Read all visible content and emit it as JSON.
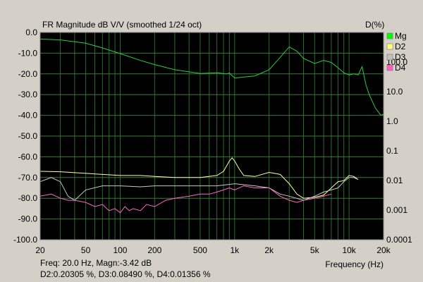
{
  "chart_data": {
    "type": "line",
    "title": "FR Magnitude dB V/V (smoothed 1/24 oct)",
    "right_axis_title": "D(%)",
    "xlabel": "Frequency (Hz)",
    "x_scale": "log",
    "xlim": [
      20,
      20000
    ],
    "x_ticks": [
      {
        "v": 20,
        "label": "20"
      },
      {
        "v": 50,
        "label": "50"
      },
      {
        "v": 100,
        "label": "100"
      },
      {
        "v": 200,
        "label": "200"
      },
      {
        "v": 500,
        "label": "500"
      },
      {
        "v": 1000,
        "label": "1k"
      },
      {
        "v": 2000,
        "label": "2k"
      },
      {
        "v": 5000,
        "label": "5k"
      },
      {
        "v": 10000,
        "label": "10k"
      },
      {
        "v": 20000,
        "label": "20k"
      }
    ],
    "ylim": [
      -100,
      0
    ],
    "y_ticks": [
      "0.0",
      "-10.0",
      "-20.0",
      "-30.0",
      "-40.0",
      "-50.0",
      "-60.0",
      "-70.0",
      "-80.0",
      "-90.0",
      "-100.0"
    ],
    "y2_scale": "log",
    "y2lim": [
      0.0001,
      1000
    ],
    "y2_ticks": [
      {
        "v": 100,
        "label": "100.0"
      },
      {
        "v": 10,
        "label": "10.0"
      },
      {
        "v": 1,
        "label": "1.0"
      },
      {
        "v": 0.1,
        "label": "0.1"
      },
      {
        "v": 0.01,
        "label": "0.01"
      },
      {
        "v": 0.001,
        "label": "0.001"
      },
      {
        "v": 0.0001,
        "label": "0.0001"
      }
    ],
    "grid": true,
    "legend_position": "right",
    "legend": [
      {
        "name": "Mg",
        "color": "#00ff00"
      },
      {
        "name": "D2",
        "color": "#ffff80"
      },
      {
        "name": "D3",
        "color": "#c0c0c0"
      },
      {
        "name": "D4",
        "color": "#ff60c0"
      }
    ],
    "series": [
      {
        "name": "Mg",
        "axis": "left",
        "color": "#2ecc40",
        "x": [
          20,
          30,
          50,
          70,
          100,
          150,
          200,
          300,
          500,
          700,
          850,
          900,
          1000,
          1200,
          1500,
          2000,
          2500,
          3000,
          3500,
          4000,
          5000,
          6000,
          7000,
          8000,
          9000,
          10000,
          11000,
          12000,
          13000,
          14000,
          15000,
          17000,
          19000,
          20000
        ],
        "y": [
          -3.2,
          -3.6,
          -5.2,
          -7.5,
          -10.2,
          -13.5,
          -15.5,
          -18.0,
          -19.8,
          -19.5,
          -20.0,
          -19.6,
          -22.0,
          -21.5,
          -21.0,
          -18.0,
          -12.0,
          -7.0,
          -9.0,
          -12.5,
          -15.0,
          -13.5,
          -14.5,
          -17.0,
          -19.5,
          -20.5,
          -20.0,
          -20.5,
          -16.5,
          -25.0,
          -30.0,
          -36.5,
          -40.0,
          -39.5
        ]
      },
      {
        "name": "D2",
        "axis": "right",
        "color": "#ffffa0",
        "x": [
          20,
          30,
          50,
          70,
          100,
          150,
          200,
          300,
          500,
          700,
          800,
          900,
          950,
          1000,
          1100,
          1200,
          1500,
          2000,
          2500,
          3000,
          3500,
          4000,
          5000,
          6000,
          7000,
          8000,
          9000,
          10000,
          11000,
          12000
        ],
        "y": [
          -67,
          -67.2,
          -68,
          -68.5,
          -69,
          -69,
          -69.5,
          -70,
          -70,
          -69,
          -67,
          -62,
          -60.5,
          -62,
          -66,
          -69,
          -69.5,
          -67.5,
          -68.5,
          -73,
          -78,
          -80,
          -79.5,
          -78.5,
          -75,
          -72,
          -71.5,
          -69,
          -69.5,
          -71
        ]
      },
      {
        "name": "D3",
        "axis": "right",
        "color": "#c8c8c8",
        "x": [
          20,
          25,
          30,
          35,
          40,
          50,
          70,
          100,
          150,
          200,
          300,
          500,
          700,
          1000,
          1500,
          2000,
          2500,
          3000,
          4000,
          5000,
          6000,
          7000,
          8000,
          9000,
          10000,
          11000,
          12000
        ],
        "y": [
          -72,
          -70,
          -72,
          -79,
          -81,
          -76,
          -74,
          -74,
          -74.5,
          -74,
          -74,
          -74,
          -74,
          -73,
          -74,
          -75,
          -78,
          -79,
          -81,
          -79,
          -77,
          -76,
          -75,
          -72,
          -70,
          -70,
          -71
        ]
      },
      {
        "name": "D4",
        "axis": "right",
        "color": "#ff66cc",
        "x": [
          20,
          25,
          30,
          35,
          40,
          50,
          60,
          70,
          80,
          90,
          100,
          110,
          120,
          130,
          150,
          170,
          200,
          250,
          300,
          400,
          500,
          600,
          700,
          800,
          900,
          1000,
          1200,
          1500,
          2000,
          2500,
          3000,
          3500,
          4000,
          5000,
          6000,
          7000
        ],
        "y": [
          -79,
          -78,
          -80,
          -81,
          -81,
          -82,
          -84,
          -83,
          -86,
          -85,
          -87,
          -84,
          -86,
          -85,
          -86,
          -83,
          -84,
          -81,
          -80,
          -79,
          -78,
          -78,
          -77,
          -76,
          -75,
          -76,
          -74,
          -75,
          -75,
          -79,
          -81,
          -82,
          -81,
          -80,
          -79,
          -78
        ]
      }
    ]
  },
  "status": {
    "freq_line": "Freq: 20.0 Hz, Magn:-3.42 dB",
    "dist_line": "D2:0.20305 %, D3:0.08490 %, D4:0.01356 %"
  }
}
